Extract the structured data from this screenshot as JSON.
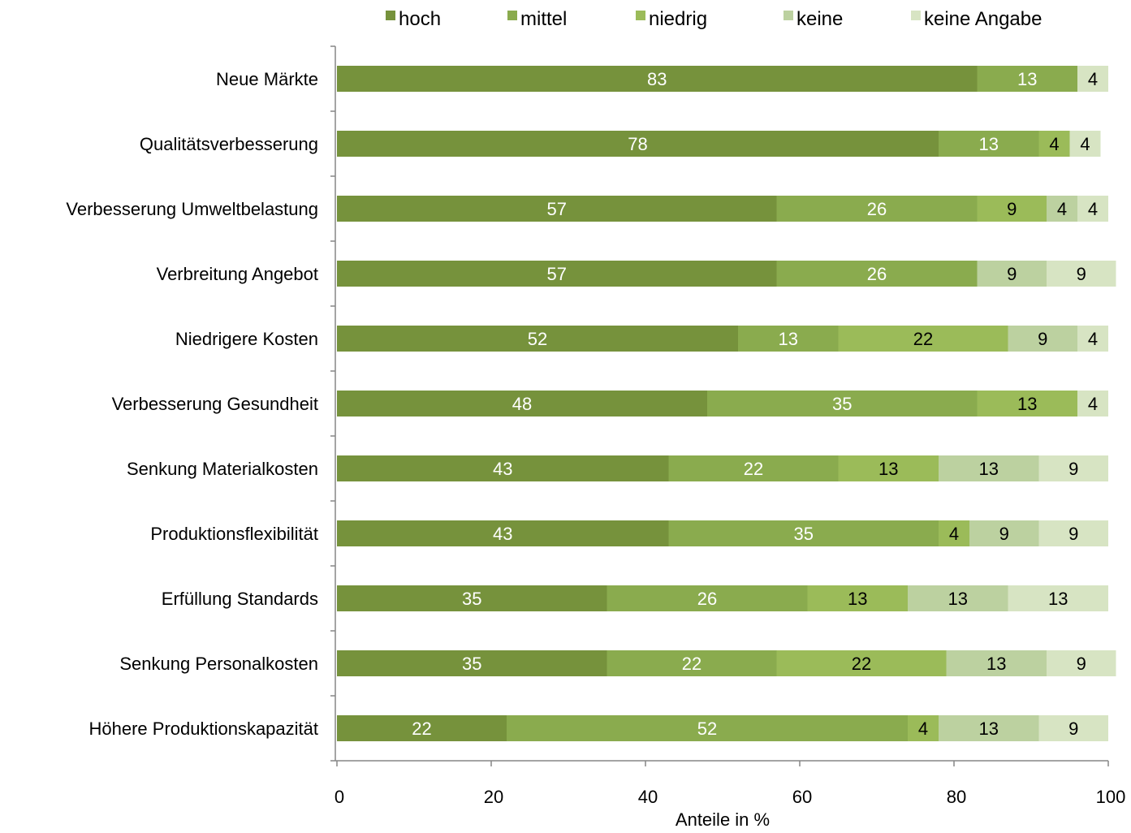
{
  "chart_data": {
    "type": "bar",
    "orientation": "horizontal",
    "stacked": true,
    "title": "",
    "xlabel": "Anteile in %",
    "ylabel": "",
    "xlim": [
      0,
      100
    ],
    "xticks": [
      0,
      20,
      40,
      60,
      80,
      100
    ],
    "grid": false,
    "legend_position": "top",
    "categories": [
      "Neue Märkte",
      "Qualitätsverbesserung",
      "Verbesserung Umweltbelastung",
      "Verbreitung Angebot",
      "Niedrigere Kosten",
      "Verbesserung Gesundheit",
      "Senkung Materialkosten",
      "Produktionsflexibilität",
      "Erfüllung Standards",
      "Senkung Personalkosten",
      "Höhere Produktionskapazität"
    ],
    "series": [
      {
        "name": "hoch",
        "color": "#76923c",
        "label_color": "#ffffff",
        "values": [
          83,
          78,
          57,
          57,
          52,
          48,
          43,
          43,
          35,
          35,
          22
        ]
      },
      {
        "name": "mittel",
        "color": "#8aab4e",
        "label_color": "#ffffff",
        "values": [
          13,
          13,
          26,
          26,
          13,
          35,
          22,
          35,
          26,
          22,
          52
        ]
      },
      {
        "name": "niedrig",
        "color": "#9bbb59",
        "label_color": "#000000",
        "values": [
          0,
          4,
          9,
          0,
          22,
          13,
          13,
          4,
          13,
          22,
          4
        ]
      },
      {
        "name": "keine",
        "color": "#bcd1a0",
        "label_color": "#000000",
        "values": [
          0,
          0,
          4,
          9,
          9,
          0,
          13,
          9,
          13,
          13,
          13
        ]
      },
      {
        "name": "keine Angabe",
        "color": "#d7e4c3",
        "label_color": "#000000",
        "values": [
          4,
          4,
          4,
          9,
          4,
          4,
          9,
          9,
          13,
          9,
          9
        ]
      }
    ]
  }
}
